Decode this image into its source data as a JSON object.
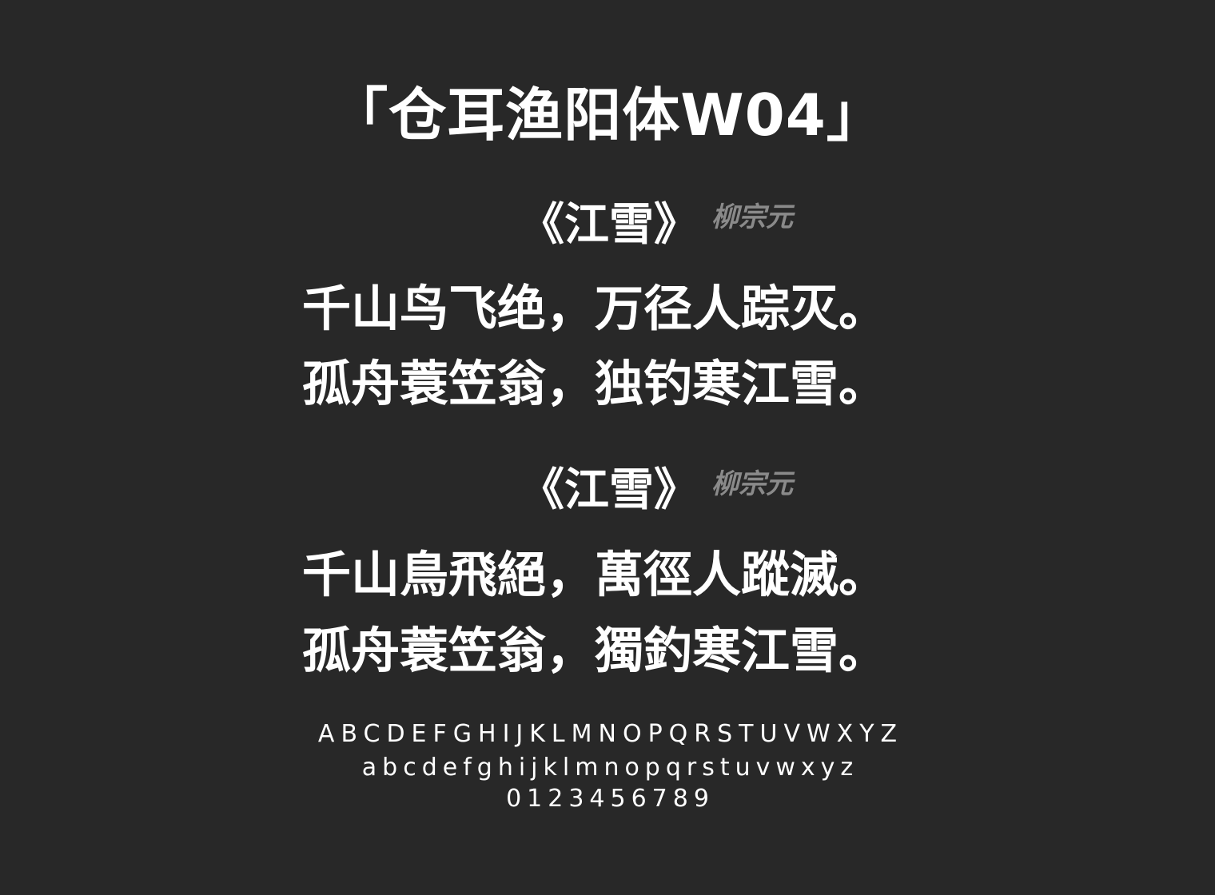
{
  "title": "「仓耳渔阳体W04」",
  "sections": [
    {
      "poem_title": "《江雪》",
      "author": "柳宗元",
      "lines": [
        "千山鸟飞绝，万径人踪灭。",
        "孤舟蓑笠翁，独钓寒江雪。"
      ]
    },
    {
      "poem_title": "《江雪》",
      "author": "柳宗元",
      "lines": [
        "千山鳥飛絕，萬徑人蹤滅。",
        "孤舟蓑笠翁，獨釣寒江雪。"
      ]
    }
  ],
  "glyphs": {
    "uppercase": "ABCDEFGHIJKLMNOPQRSTUVWXYZ",
    "lowercase": "abcdefghijklmnopqrstuvwxyz",
    "digits": "0123456789"
  },
  "colors": {
    "background": "#282828",
    "text": "#ffffff",
    "author": "#8a8a8a"
  }
}
